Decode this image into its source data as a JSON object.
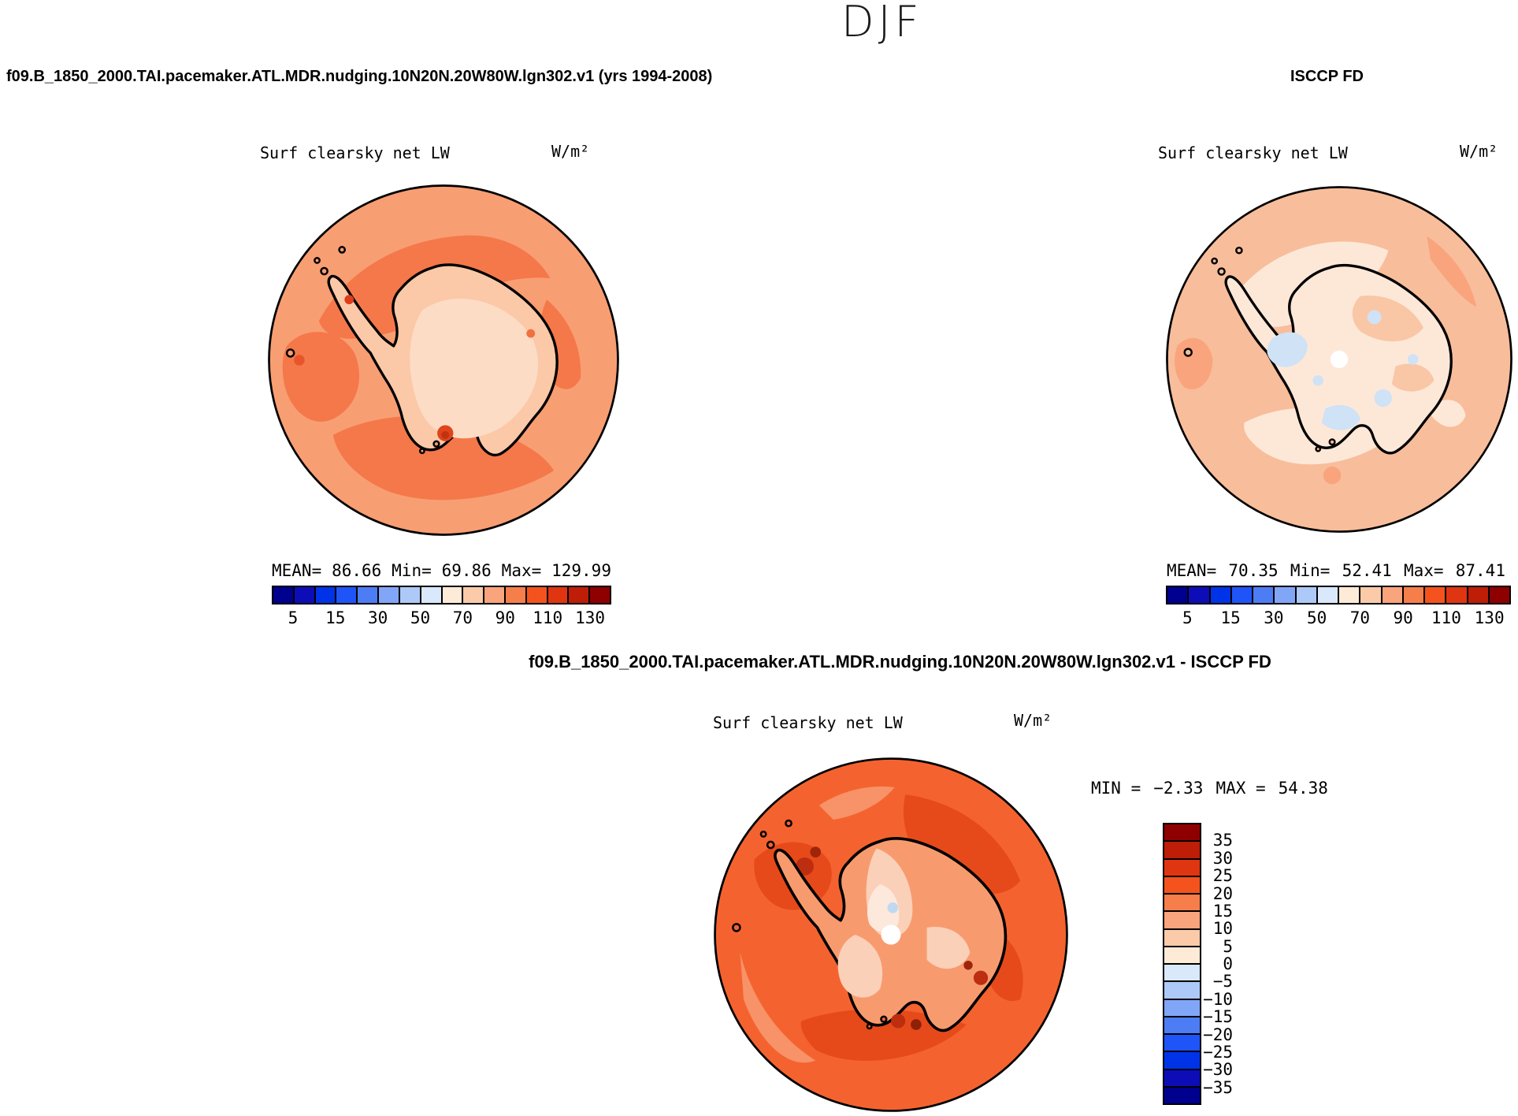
{
  "title": "DJF",
  "colors": {
    "background": "#ffffff",
    "text": "#000000",
    "palette16": [
      "#00008F",
      "#0D0DB8",
      "#0033E8",
      "#1F55F8",
      "#4D7DF5",
      "#82A6F7",
      "#ADC9F8",
      "#D9E8FB",
      "#FDEBD8",
      "#FBCBA9",
      "#F9A47C",
      "#F67E4B",
      "#F5531E",
      "#E03511",
      "#BE1D08",
      "#8E0000"
    ]
  },
  "panels": [
    {
      "id": "model",
      "header": "f09.B_1850_2000.TAI.pacemaker.ATL.MDR.nudging.10N20N.20W80W.lgn302.v1 (yrs 1994-2008)",
      "field_label": "Surf clearsky net LW",
      "units": "W/m²",
      "stats": {
        "mean_label": "MEAN=",
        "mean": "86.66",
        "min_label": "Min=",
        "min": "69.86",
        "max_label": "Max=",
        "max": "129.99"
      },
      "colorbar_ticks": [
        "5",
        "15",
        "30",
        "50",
        "70",
        "90",
        "110",
        "130"
      ]
    },
    {
      "id": "obs",
      "header": "ISCCP FD",
      "field_label": "Surf clearsky net LW",
      "units": "W/m²",
      "stats": {
        "mean_label": "MEAN=",
        "mean": "70.35",
        "min_label": "Min=",
        "min": "52.41",
        "max_label": "Max=",
        "max": "87.41"
      },
      "colorbar_ticks": [
        "5",
        "15",
        "30",
        "50",
        "70",
        "90",
        "110",
        "130"
      ]
    },
    {
      "id": "diff",
      "header": "f09.B_1850_2000.TAI.pacemaker.ATL.MDR.nudging.10N20N.20W80W.lgn302.v1 - ISCCP FD",
      "field_label": "Surf clearsky net LW",
      "units": "W/m²",
      "stats": {
        "min_label": "MIN =",
        "min": "−2.33",
        "max_label": "MAX =",
        "max": "54.38"
      },
      "colorbar_ticks": [
        "35",
        "30",
        "25",
        "20",
        "15",
        "10",
        "5",
        "0",
        "−5",
        "−10",
        "−15",
        "−20",
        "−25",
        "−30",
        "−35"
      ]
    }
  ],
  "chart_data": [
    {
      "type": "heatmap",
      "subtype": "south-polar-stereographic contour map of Antarctica",
      "title": "f09.B_1850_2000.TAI.pacemaker.ATL.MDR.nudging.10N20N.20W80W.lgn302.v1 (yrs 1994-2008)",
      "season": "DJF",
      "variable": "Surf clearsky net LW",
      "units": "W/m²",
      "mean": 86.66,
      "min": 69.86,
      "max": 129.99,
      "contour_levels": [
        5,
        15,
        30,
        50,
        70,
        90,
        110,
        130
      ],
      "palette": "16-step blue to red diverging",
      "legend_position": "bottom"
    },
    {
      "type": "heatmap",
      "subtype": "south-polar-stereographic contour map of Antarctica",
      "title": "ISCCP FD",
      "season": "DJF",
      "variable": "Surf clearsky net LW",
      "units": "W/m²",
      "mean": 70.35,
      "min": 52.41,
      "max": 87.41,
      "contour_levels": [
        5,
        15,
        30,
        50,
        70,
        90,
        110,
        130
      ],
      "palette": "16-step blue to red diverging",
      "legend_position": "bottom"
    },
    {
      "type": "heatmap",
      "subtype": "south-polar-stereographic contour map of Antarctica (difference)",
      "title": "f09.B_1850_2000.TAI.pacemaker.ATL.MDR.nudging.10N20N.20W80W.lgn302.v1 - ISCCP FD",
      "season": "DJF",
      "variable": "Surf clearsky net LW",
      "units": "W/m²",
      "min": -2.33,
      "max": 54.38,
      "contour_levels": [
        -35,
        -30,
        -25,
        -20,
        -15,
        -10,
        -5,
        0,
        5,
        10,
        15,
        20,
        25,
        30,
        35
      ],
      "palette": "16-step blue to red diverging",
      "legend_position": "right"
    }
  ]
}
